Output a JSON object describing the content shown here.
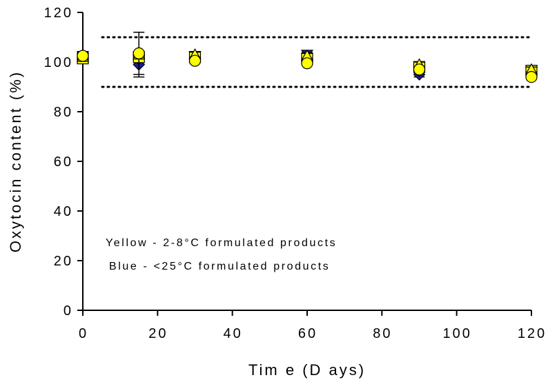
{
  "chart_data": {
    "type": "scatter",
    "xlabel": "Tim e (D ays)",
    "ylabel": "Oxytocin content (%)",
    "xlim": [
      0,
      120
    ],
    "ylim": [
      0,
      120
    ],
    "xticks": [
      0,
      20,
      40,
      60,
      80,
      100,
      120
    ],
    "yticks": [
      0,
      20,
      40,
      60,
      80,
      100,
      120
    ],
    "reference_lines": [
      {
        "y": 110,
        "style": "dotted"
      },
      {
        "y": 90,
        "style": "dotted"
      }
    ],
    "annotations": [
      "Yellow - 2-8°C formulated products",
      "Blue - <25°C formulated products"
    ],
    "colors": {
      "yellow": "#ffff00",
      "blue": "#1a1aa0",
      "outline": "#000000"
    },
    "series": [
      {
        "marker": "diamond",
        "color": "blue",
        "x": [
          0,
          15,
          30,
          60,
          90,
          120
        ],
        "y": [
          101.5,
          99,
          101,
          101,
          95,
          95
        ],
        "err": [
          1,
          4,
          1,
          1,
          1,
          1
        ]
      },
      {
        "marker": "triangle-down",
        "color": "blue",
        "x": [
          0,
          15,
          30,
          60,
          90,
          120
        ],
        "y": [
          102.5,
          101,
          102.5,
          103,
          96.5,
          96
        ]
      },
      {
        "marker": "square",
        "color": "yellow",
        "x": [
          0,
          15,
          30,
          60,
          90,
          120
        ],
        "y": [
          101.5,
          102,
          102,
          101.5,
          98,
          96.5
        ]
      },
      {
        "marker": "triangle-up",
        "color": "yellow",
        "x": [
          0,
          15,
          30,
          60,
          90,
          120
        ],
        "y": [
          102,
          103,
          103,
          102.5,
          99,
          97
        ],
        "err": [
          1,
          9,
          1,
          1,
          1,
          1
        ]
      },
      {
        "marker": "circle",
        "color": "yellow",
        "x": [
          0,
          15,
          30,
          60,
          90,
          120
        ],
        "y": [
          102.5,
          103.5,
          100.5,
          99.5,
          97,
          94
        ]
      }
    ]
  }
}
